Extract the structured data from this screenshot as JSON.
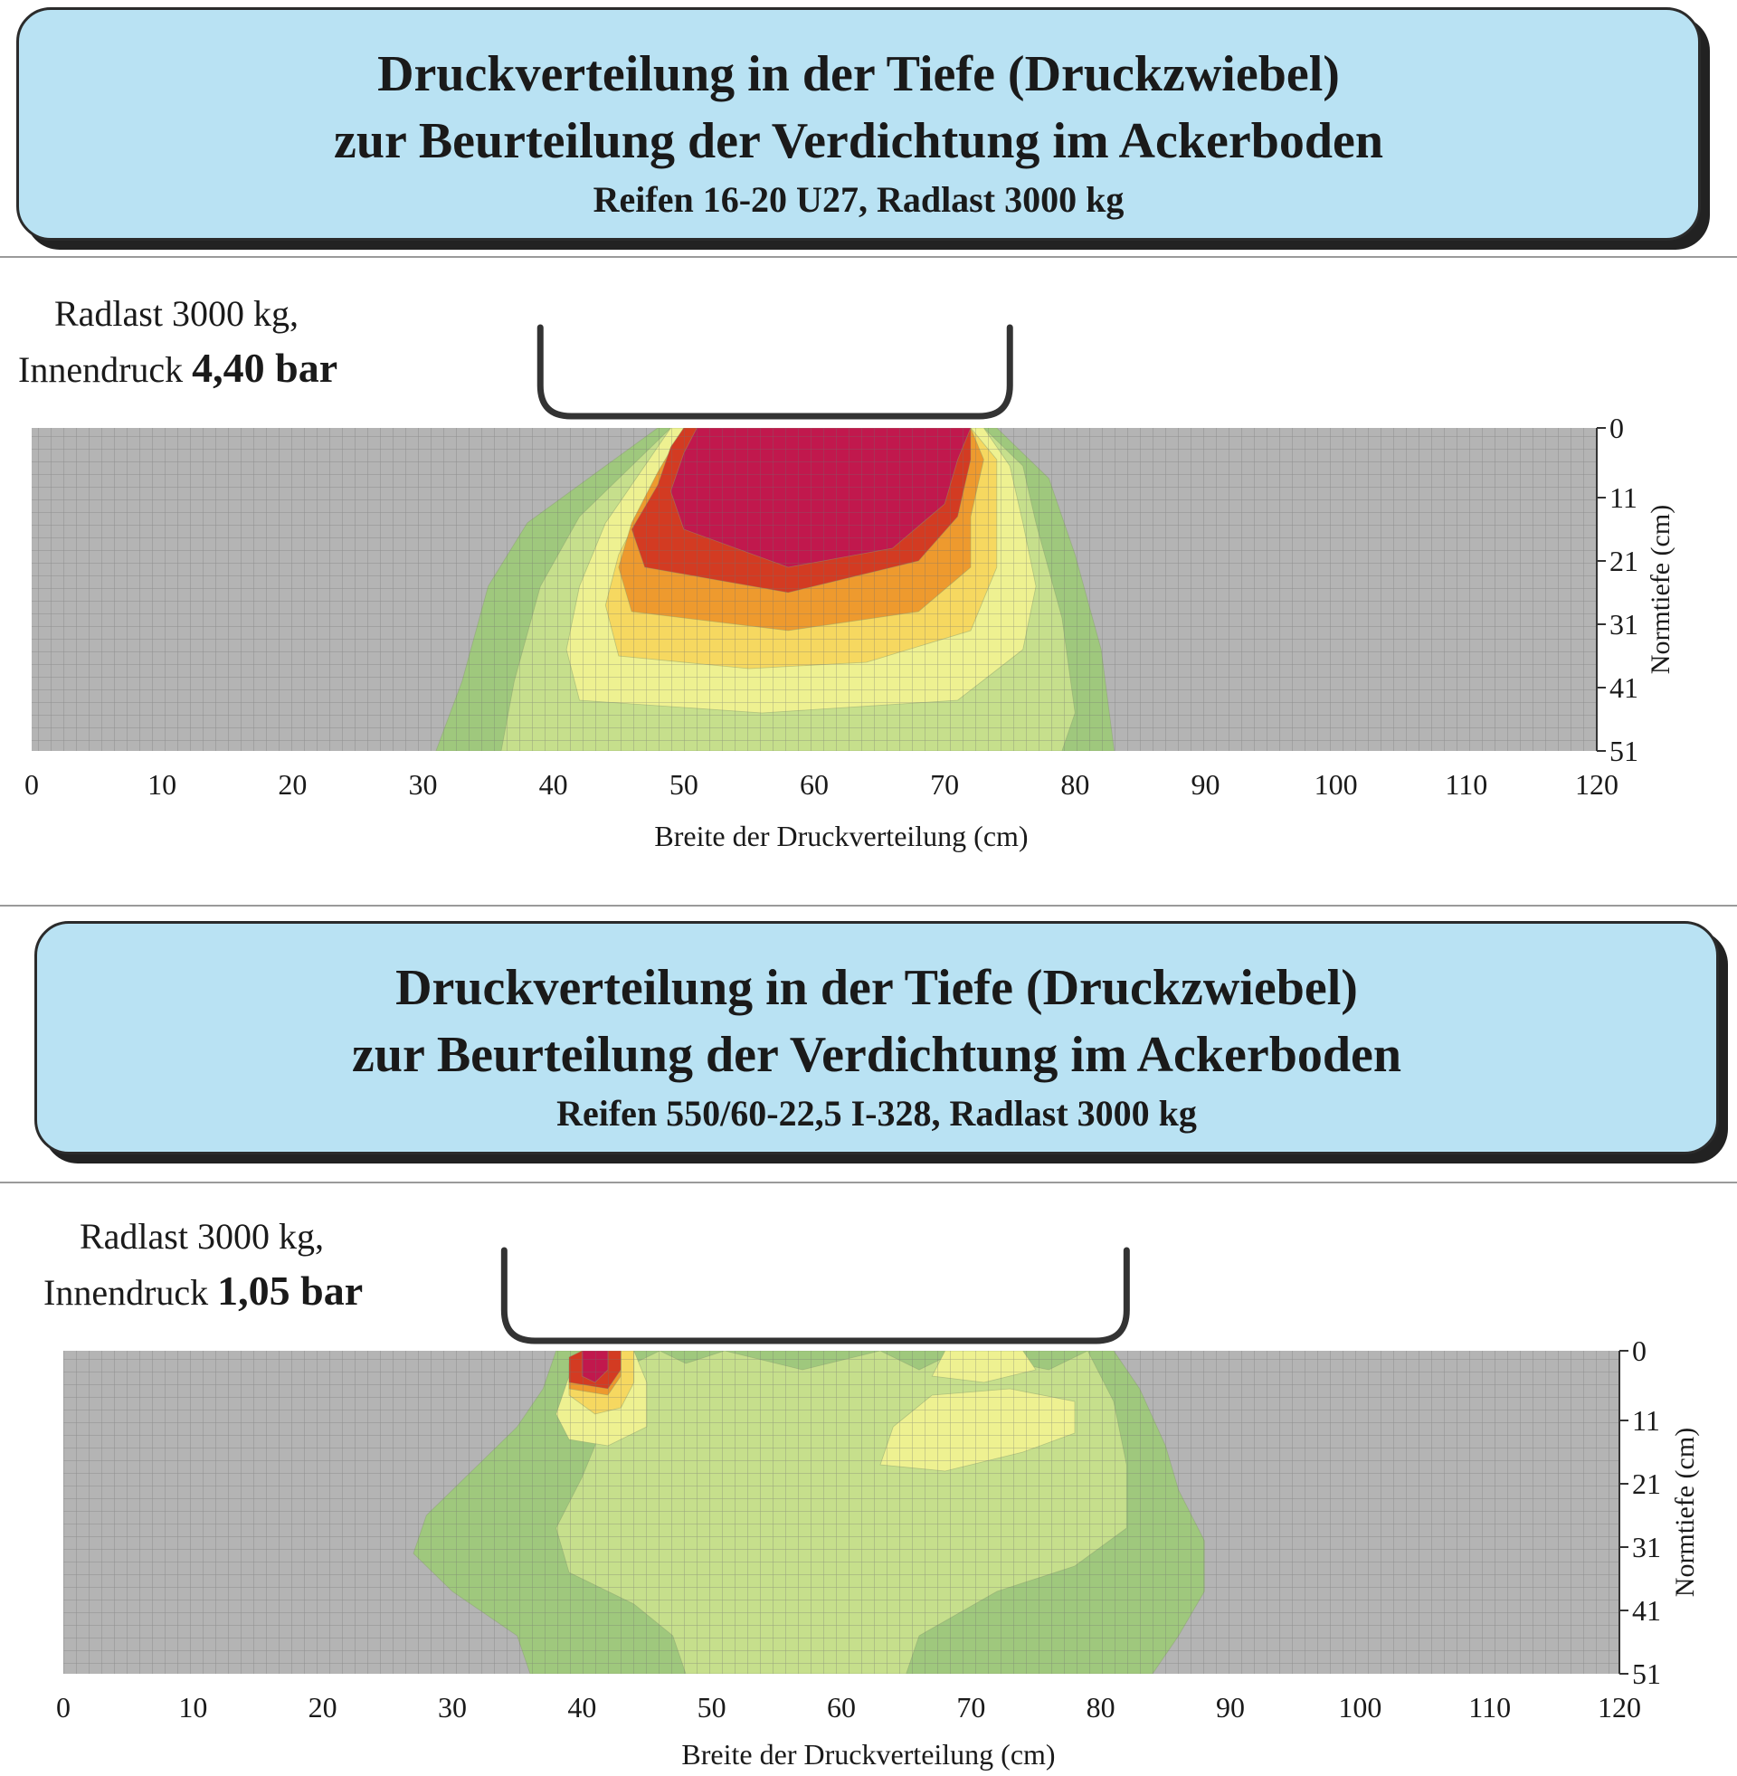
{
  "chart_data": [
    {
      "type": "heatmap",
      "title_lines": [
        "Druckverteilung in der Tiefe (Druckzwiebel)",
        "zur Beurteilung der Verdichtung im Ackerboden"
      ],
      "subtitle": "Reifen 16-20 U27, Radlast 3000 kg",
      "annotation": {
        "line1": "Radlast 3000 kg,",
        "line2_prefix": "Innendruck ",
        "line2_value": "4,40 bar"
      },
      "xlabel": "Breite der Druckverteilung (cm)",
      "ylabel": "Normtiefe (cm)",
      "x_ticks": [
        0,
        10,
        20,
        30,
        40,
        50,
        60,
        70,
        80,
        90,
        100,
        110,
        120
      ],
      "y_ticks": [
        0,
        11,
        21,
        31,
        41,
        51
      ],
      "xlim": [
        0,
        120
      ],
      "ylim": [
        0,
        51
      ],
      "tire_x_range": [
        39,
        75
      ],
      "grid": true,
      "colors": {
        "background": "#b4b4b4",
        "outer": "#9fc87d",
        "middle": "#c6df8c",
        "inner": "#eef191",
        "yellow": "#f6d860",
        "orange": "#ee9a2e",
        "red": "#d33b22",
        "core": "#c1184d"
      },
      "zones": [
        {
          "name": "outer",
          "points": [
            [
              31,
              51
            ],
            [
              33,
              40
            ],
            [
              35,
              25
            ],
            [
              38,
              15
            ],
            [
              44,
              6
            ],
            [
              48,
              0
            ],
            [
              74,
              0
            ],
            [
              78,
              8
            ],
            [
              80,
              20
            ],
            [
              82,
              35
            ],
            [
              83,
              51
            ]
          ]
        },
        {
          "name": "middle",
          "points": [
            [
              36,
              51
            ],
            [
              37,
              40
            ],
            [
              39,
              25
            ],
            [
              42,
              14
            ],
            [
              46,
              6
            ],
            [
              49,
              0
            ],
            [
              73,
              0
            ],
            [
              76,
              6
            ],
            [
              77,
              15
            ],
            [
              79,
              30
            ],
            [
              80,
              45
            ],
            [
              79,
              51
            ]
          ]
        },
        {
          "name": "inner",
          "points": [
            [
              42,
              43
            ],
            [
              41,
              35
            ],
            [
              42,
              25
            ],
            [
              44,
              15
            ],
            [
              47,
              6
            ],
            [
              49,
              0
            ],
            [
              73,
              0
            ],
            [
              75,
              6
            ],
            [
              76,
              15
            ],
            [
              77,
              25
            ],
            [
              76,
              35
            ],
            [
              71,
              43
            ],
            [
              56,
              45
            ]
          ]
        },
        {
          "name": "yellow",
          "points": [
            [
              45,
              36
            ],
            [
              44,
              28
            ],
            [
              45,
              20
            ],
            [
              47,
              12
            ],
            [
              49,
              4
            ],
            [
              50,
              0
            ],
            [
              72,
              0
            ],
            [
              74,
              5
            ],
            [
              74,
              12
            ],
            [
              74,
              22
            ],
            [
              72,
              32
            ],
            [
              64,
              37
            ],
            [
              55,
              38
            ]
          ]
        },
        {
          "name": "orange",
          "points": [
            [
              46,
              29
            ],
            [
              45,
              22
            ],
            [
              46,
              15
            ],
            [
              48,
              7
            ],
            [
              50,
              0
            ],
            [
              72,
              0
            ],
            [
              73,
              5
            ],
            [
              72,
              14
            ],
            [
              72,
              22
            ],
            [
              68,
              29
            ],
            [
              58,
              32
            ]
          ]
        },
        {
          "name": "red",
          "points": [
            [
              47,
              22
            ],
            [
              46,
              16
            ],
            [
              48,
              9
            ],
            [
              49,
              3
            ],
            [
              50,
              0
            ],
            [
              72,
              0
            ],
            [
              72,
              5
            ],
            [
              71,
              14
            ],
            [
              68,
              21
            ],
            [
              58,
              26
            ]
          ]
        },
        {
          "name": "core",
          "points": [
            [
              50,
              16
            ],
            [
              49,
              10
            ],
            [
              50,
              4
            ],
            [
              51,
              0
            ],
            [
              72,
              0
            ],
            [
              71,
              5
            ],
            [
              70,
              12
            ],
            [
              66,
              19
            ],
            [
              58,
              22
            ]
          ]
        }
      ]
    },
    {
      "type": "heatmap",
      "title_lines": [
        "Druckverteilung in der Tiefe (Druckzwiebel)",
        "zur Beurteilung der Verdichtung im Ackerboden"
      ],
      "subtitle": "Reifen 550/60-22,5 I-328, Radlast 3000 kg",
      "annotation": {
        "line1": "Radlast 3000 kg,",
        "line2_prefix": "Innendruck ",
        "line2_value": "1,05 bar"
      },
      "xlabel": "Breite der Druckverteilung (cm)",
      "ylabel": "Normtiefe (cm)",
      "x_ticks": [
        0,
        10,
        20,
        30,
        40,
        50,
        60,
        70,
        80,
        90,
        100,
        110,
        120
      ],
      "y_ticks": [
        0,
        11,
        21,
        31,
        41,
        51
      ],
      "xlim": [
        0,
        120
      ],
      "ylim": [
        0,
        51
      ],
      "tire_x_range": [
        34,
        82
      ],
      "grid": true,
      "colors": {
        "background": "#b4b4b4",
        "outer": "#9fc87d",
        "middle": "#c6df8c",
        "inner": "#eef191",
        "yellow": "#f6d860",
        "orange": "#ee9a2e",
        "red": "#d33b22",
        "core": "#c1184d"
      },
      "zones": [
        {
          "name": "outer",
          "points": [
            [
              36,
              51
            ],
            [
              35,
              45
            ],
            [
              30,
              38
            ],
            [
              27,
              32
            ],
            [
              28,
              26
            ],
            [
              32,
              18
            ],
            [
              35,
              12
            ],
            [
              37,
              6
            ],
            [
              38,
              0
            ],
            [
              81,
              0
            ],
            [
              83,
              6
            ],
            [
              85,
              15
            ],
            [
              86,
              22
            ],
            [
              88,
              30
            ],
            [
              88,
              38
            ],
            [
              86,
              45
            ],
            [
              84,
              51
            ]
          ]
        },
        {
          "name": "middle",
          "points": [
            [
              48,
              51
            ],
            [
              47,
              45
            ],
            [
              44,
              40
            ],
            [
              39,
              35
            ],
            [
              38,
              28
            ],
            [
              40,
              20
            ],
            [
              42,
              10
            ],
            [
              44,
              2
            ],
            [
              46,
              0
            ],
            [
              48,
              2
            ],
            [
              51,
              0
            ],
            [
              57,
              3
            ],
            [
              63,
              0
            ],
            [
              66,
              3
            ],
            [
              69,
              0
            ],
            [
              76,
              3
            ],
            [
              79,
              0
            ],
            [
              81,
              8
            ],
            [
              82,
              18
            ],
            [
              82,
              28
            ],
            [
              78,
              34
            ],
            [
              72,
              38
            ],
            [
              66,
              45
            ],
            [
              65,
              51
            ]
          ]
        },
        {
          "name": "inner",
          "points": [
            [
              38,
              10
            ],
            [
              39,
              4
            ],
            [
              40,
              0
            ],
            [
              44,
              0
            ],
            [
              45,
              5
            ],
            [
              45,
              12
            ],
            [
              42,
              15
            ],
            [
              39,
              14
            ]
          ]
        },
        {
          "name": "inner",
          "points": [
            [
              63,
              18
            ],
            [
              64,
              12
            ],
            [
              67,
              7
            ],
            [
              73,
              6
            ],
            [
              78,
              8
            ],
            [
              78,
              13
            ],
            [
              74,
              16
            ],
            [
              68,
              19
            ]
          ]
        },
        {
          "name": "inner",
          "points": [
            [
              67,
              4
            ],
            [
              68,
              0
            ],
            [
              74,
              0
            ],
            [
              75,
              3
            ],
            [
              71,
              5
            ]
          ]
        },
        {
          "name": "yellow",
          "points": [
            [
              39,
              7
            ],
            [
              39,
              2
            ],
            [
              40,
              0
            ],
            [
              44,
              0
            ],
            [
              44,
              5
            ],
            [
              43,
              9
            ],
            [
              41,
              10
            ]
          ]
        },
        {
          "name": "orange",
          "points": [
            [
              39,
              6
            ],
            [
              39,
              2
            ],
            [
              40,
              0
            ],
            [
              43,
              0
            ],
            [
              43,
              4
            ],
            [
              42,
              7
            ]
          ]
        },
        {
          "name": "red",
          "points": [
            [
              39,
              5
            ],
            [
              39,
              1
            ],
            [
              40,
              0
            ],
            [
              43,
              0
            ],
            [
              43,
              3
            ],
            [
              42,
              6
            ]
          ]
        },
        {
          "name": "core",
          "points": [
            [
              40,
              4
            ],
            [
              40,
              0
            ],
            [
              42,
              0
            ],
            [
              42,
              3
            ],
            [
              41,
              5
            ]
          ]
        }
      ]
    }
  ]
}
